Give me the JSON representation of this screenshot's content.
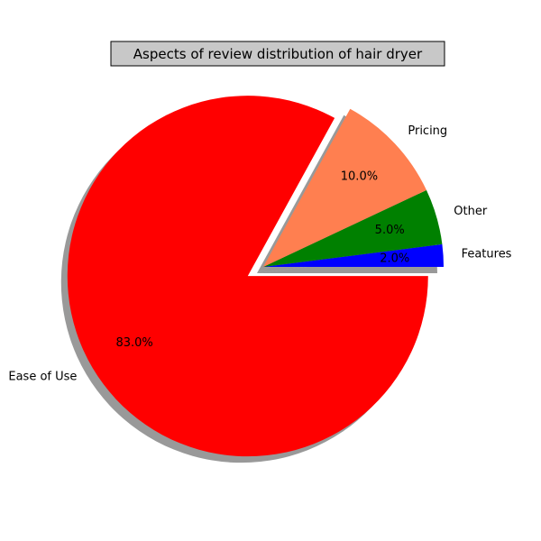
{
  "chart_data": {
    "type": "pie",
    "title": "Aspects of review distribution of hair dryer",
    "slices": [
      {
        "label": "Features",
        "value": 2.0,
        "pct_label": "2.0%",
        "color": "#0000ff",
        "exploded": false
      },
      {
        "label": "Other",
        "value": 5.0,
        "pct_label": "5.0%",
        "color": "#008000",
        "exploded": false
      },
      {
        "label": "Pricing",
        "value": 10.0,
        "pct_label": "10.0%",
        "color": "#ff7f50",
        "exploded": false
      },
      {
        "label": "Ease of Use",
        "value": 83.0,
        "pct_label": "83.0%",
        "color": "#ff0000",
        "exploded": true
      }
    ],
    "start_angle_deg": 0,
    "direction": "counterclockwise",
    "shadow": true,
    "legend": "none",
    "title_box_color": "#c8c8c8"
  }
}
